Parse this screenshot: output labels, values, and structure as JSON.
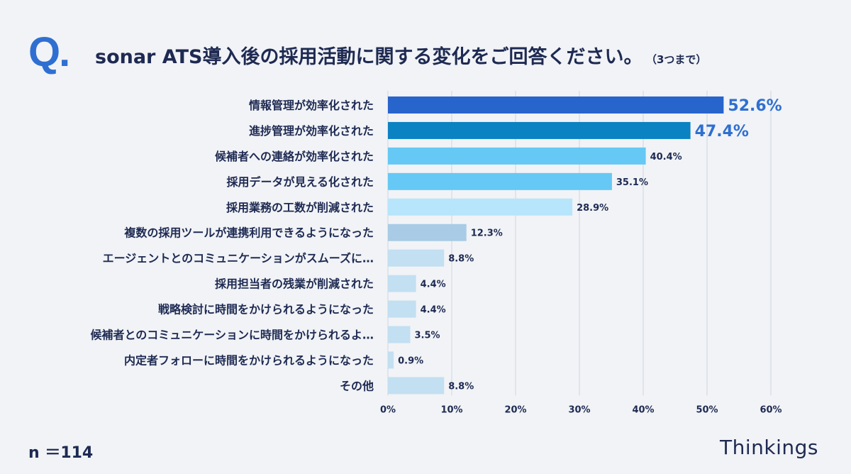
{
  "header": {
    "q_mark": "Q.",
    "question": "sonar ATS導入後の採用活動に関する変化をご回答ください。",
    "note": "（3つまで）"
  },
  "footer": {
    "n_label": "n ＝114",
    "brand": "Thinkings"
  },
  "colors": {
    "bar_top1": "#2764cc",
    "bar_top2": "#0b82c2",
    "bar_light": "#66c8f4",
    "bar_pale": "#b7e5fb",
    "bar_muted": "#a9cbe5",
    "bar_faint": "#c3dff2",
    "highlight_text": "#2f6fd1",
    "text": "#1e2a52",
    "grid": "#cfd6e0"
  },
  "chart_data": {
    "type": "bar",
    "orientation": "horizontal",
    "categories": [
      "情報管理が効率化された",
      "進捗管理が効率化された",
      "候補者への連絡が効率化された",
      "採用データが見える化された",
      "採用業務の工数が削減された",
      "複数の採用ツールが連携利用できるようになった",
      "エージェントとのコミュニケーションがスムーズに…",
      "採用担当者の残業が削減された",
      "戦略検討に時間をかけられるようになった",
      "候補者とのコミュニケーションに時間をかけられるよ…",
      "内定者フォローに時間をかけられるようになった",
      "その他"
    ],
    "values": [
      52.6,
      47.4,
      40.4,
      35.1,
      28.9,
      12.3,
      8.8,
      4.4,
      4.4,
      3.5,
      0.9,
      8.8
    ],
    "value_labels": [
      "52.6%",
      "47.4%",
      "40.4%",
      "35.1%",
      "28.9%",
      "12.3%",
      "8.8%",
      "4.4%",
      "4.4%",
      "3.5%",
      "0.9%",
      "8.8%"
    ],
    "xlim": [
      0,
      60
    ],
    "xticks": [
      "0%",
      "10%",
      "20%",
      "30%",
      "40%",
      "50%",
      "60%"
    ],
    "grid": true,
    "title": "",
    "xlabel": "",
    "ylabel": ""
  }
}
